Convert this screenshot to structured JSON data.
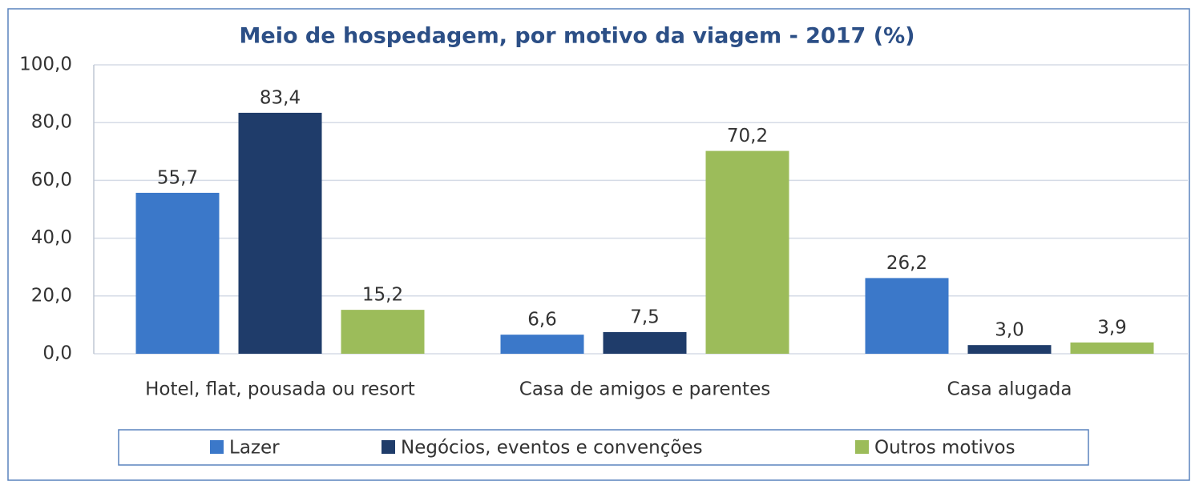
{
  "chart_data": {
    "type": "bar",
    "title": "Meio de hospedagem, por motivo da viagem - 2017 (%)",
    "categories": [
      "Hotel, flat, pousada ou resort",
      "Casa de amigos e parentes",
      "Casa alugada"
    ],
    "series": [
      {
        "name": "Lazer",
        "color": "#3b78c9",
        "values": [
          55.7,
          6.6,
          26.2
        ],
        "value_labels": [
          "55,7",
          "6,6",
          "26,2"
        ]
      },
      {
        "name": "Negócios, eventos e convenções",
        "color": "#1f3c6a",
        "values": [
          83.4,
          7.5,
          3.0
        ],
        "value_labels": [
          "83,4",
          "7,5",
          "3,0"
        ]
      },
      {
        "name": "Outros motivos",
        "color": "#9cbc5a",
        "values": [
          15.2,
          70.2,
          3.9
        ],
        "value_labels": [
          "15,2",
          "70,2",
          "3,9"
        ]
      }
    ],
    "ylim": [
      0,
      100
    ],
    "yticks": [
      {
        "value": 0,
        "label": "0,0"
      },
      {
        "value": 20,
        "label": "20,0"
      },
      {
        "value": 40,
        "label": "40,0"
      },
      {
        "value": 60,
        "label": "60,0"
      },
      {
        "value": 80,
        "label": "80,0"
      },
      {
        "value": 100,
        "label": "100,0"
      }
    ],
    "grid": true,
    "legend": "bottom"
  }
}
